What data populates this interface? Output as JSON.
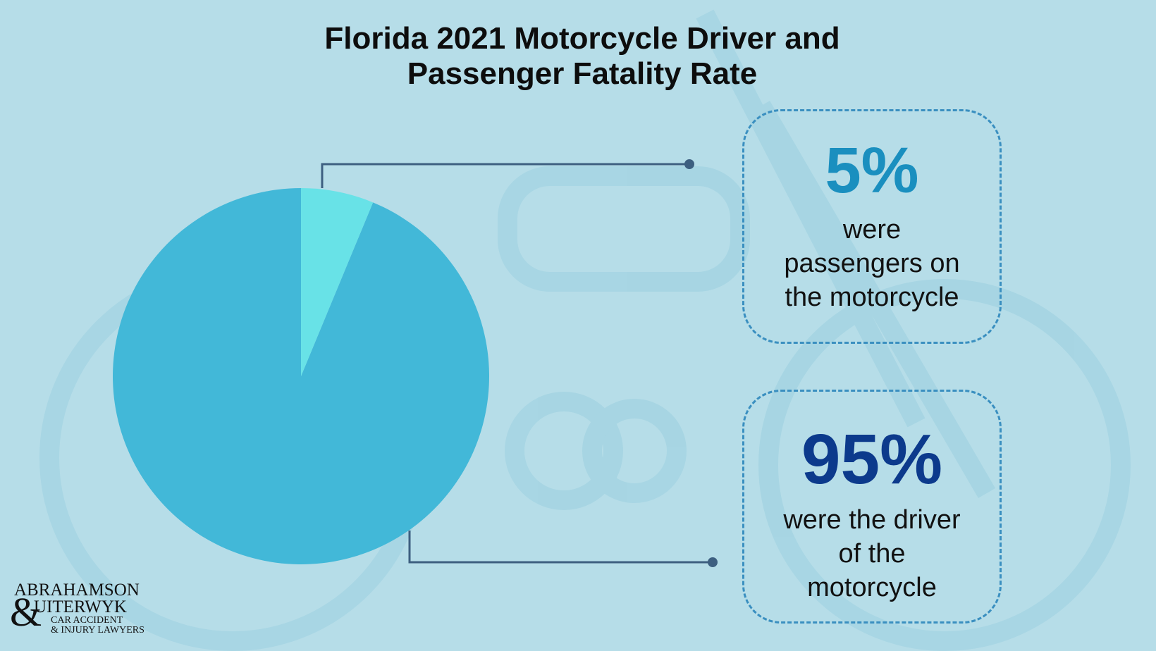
{
  "title_lines": [
    "Florida 2021 Motorcycle Driver and",
    "Passenger Fatality Rate"
  ],
  "colors": {
    "background": "#b6dde8",
    "driver_slice": "#42b8d8",
    "passenger_slice": "#68e2e7",
    "passenger_value": "#1a8fbf",
    "driver_value": "#0c3a8c",
    "box_border": "#3a8fc0",
    "leader_line": "#3d5f80"
  },
  "chart_data": {
    "type": "pie",
    "title": "Florida 2021 Motorcycle Driver and Passenger Fatality Rate",
    "slices": [
      {
        "label": "were passengers on the motorcycle",
        "value": 5
      },
      {
        "label": "were the driver of the motorcycle",
        "value": 95
      }
    ]
  },
  "callouts": [
    {
      "value": "5%",
      "lines": [
        "were",
        "passengers on",
        "the motorcycle"
      ]
    },
    {
      "value": "95%",
      "lines": [
        "were the driver",
        "of the",
        "motorcycle"
      ]
    }
  ],
  "logo": {
    "line1": "ABRAHAMSON",
    "amp": "&",
    "line2": "UITERWYK",
    "line3": "CAR ACCIDENT",
    "line4": "& INJURY LAWYERS"
  }
}
